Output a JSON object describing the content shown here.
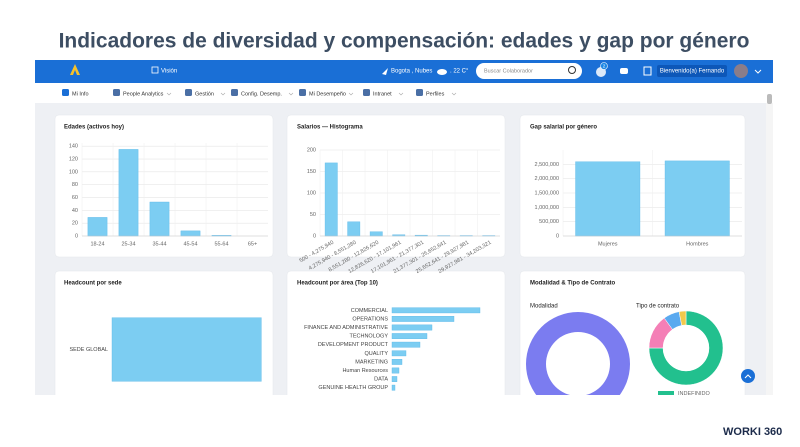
{
  "page_title": "Indicadores de diversidad y compensación: edades y gap por género",
  "navbar": {
    "vision": "Visión",
    "weather": "Bogota , Nubes",
    "temperature": ". 22 C°",
    "search_placeholder": "Buscar Colaborador",
    "badge": "2",
    "welcome": "Bienvenido(a) Fernando"
  },
  "menu": [
    "Mi Info",
    "People Analytics",
    "Gestión",
    "Config. Desemp.",
    "Mi Desempeño",
    "Intranet",
    "Perfiles"
  ],
  "contract_card_title": "Modalidad & Tipo de Contrato",
  "brand": "WORKI 360",
  "chart_data": [
    {
      "type": "bar",
      "title": "Edades (activos hoy)",
      "categories": [
        "18-24",
        "25-34",
        "35-44",
        "45-54",
        "55-64",
        "65+"
      ],
      "values": [
        29,
        135,
        53,
        8,
        1,
        0
      ],
      "color": "#7ccdf2",
      "ylim": [
        0,
        145
      ],
      "yticks": [
        0,
        20,
        40,
        60,
        80,
        100,
        120,
        140
      ],
      "grid": true
    },
    {
      "type": "bar",
      "title": "Salarios — Histograma",
      "categories": [
        "500 - 4,275,940",
        "4,275,940 - 8,551,280",
        "8,551,280 - 12,826,620",
        "12,826,620 - 17,101,961",
        "17,101,961 - 21,377,301",
        "21,377,301 - 25,652,641",
        "25,652,641 - 29,927,981",
        "29,927,981 - 34,203,321"
      ],
      "values": [
        170,
        33,
        10,
        3,
        2,
        1,
        1,
        1
      ],
      "color": "#7ccdf2",
      "ylim": [
        0,
        200
      ],
      "yticks": [
        0,
        50,
        100,
        150,
        200
      ],
      "grid": true
    },
    {
      "type": "bar",
      "title": "Gap salarial por género",
      "categories": [
        "Mujeres",
        "Hombres"
      ],
      "values": [
        2590000,
        2620000
      ],
      "color": "#7ccdf2",
      "ylim": [
        0,
        3000000
      ],
      "yticks": [
        0,
        {
          "value": 500000,
          "label": "500,000"
        },
        {
          "value": 1000000,
          "label": "1,000,000"
        },
        {
          "value": 1500000,
          "label": "1,500,000"
        },
        {
          "value": 2000000,
          "label": "2,000,000"
        },
        {
          "value": 2500000,
          "label": "2,500,000"
        }
      ],
      "grid": true
    },
    {
      "type": "hbar",
      "title": "Headcount por sede",
      "categories": [
        "SEDE GLOBAL"
      ],
      "values": [
        226
      ],
      "color": "#7ccdf2",
      "xlim": [
        0,
        230
      ]
    },
    {
      "type": "hbar",
      "title": "Headcount por área (Top 10)",
      "categories": [
        "COMMERCIAL",
        "OPERATIONS",
        "FINANCE AND ADMINISTRATIVE",
        "TECHNOLOGY",
        "DEVELOPMENT PRODUCT",
        "QUALITY",
        "MARKETING",
        "Human Resources",
        "DATA",
        "GENUINE HEALTH GROUP"
      ],
      "values": [
        88,
        62,
        40,
        35,
        28,
        14,
        10,
        7,
        5,
        3
      ],
      "color": "#7ccdf2",
      "xlim": [
        0,
        90
      ]
    },
    {
      "type": "pie",
      "title": "Modalidad",
      "values": [
        100
      ],
      "colors": [
        "#7b7cf0"
      ]
    },
    {
      "type": "pie",
      "title": "Tipo de contrato",
      "categories": [
        "INDEFINIDO",
        null,
        null,
        null
      ],
      "values": [
        75,
        15,
        7,
        3
      ],
      "colors": [
        "#22c08e",
        "#f47fb6",
        "#5aa9ef",
        "#f2c94c"
      ]
    }
  ]
}
